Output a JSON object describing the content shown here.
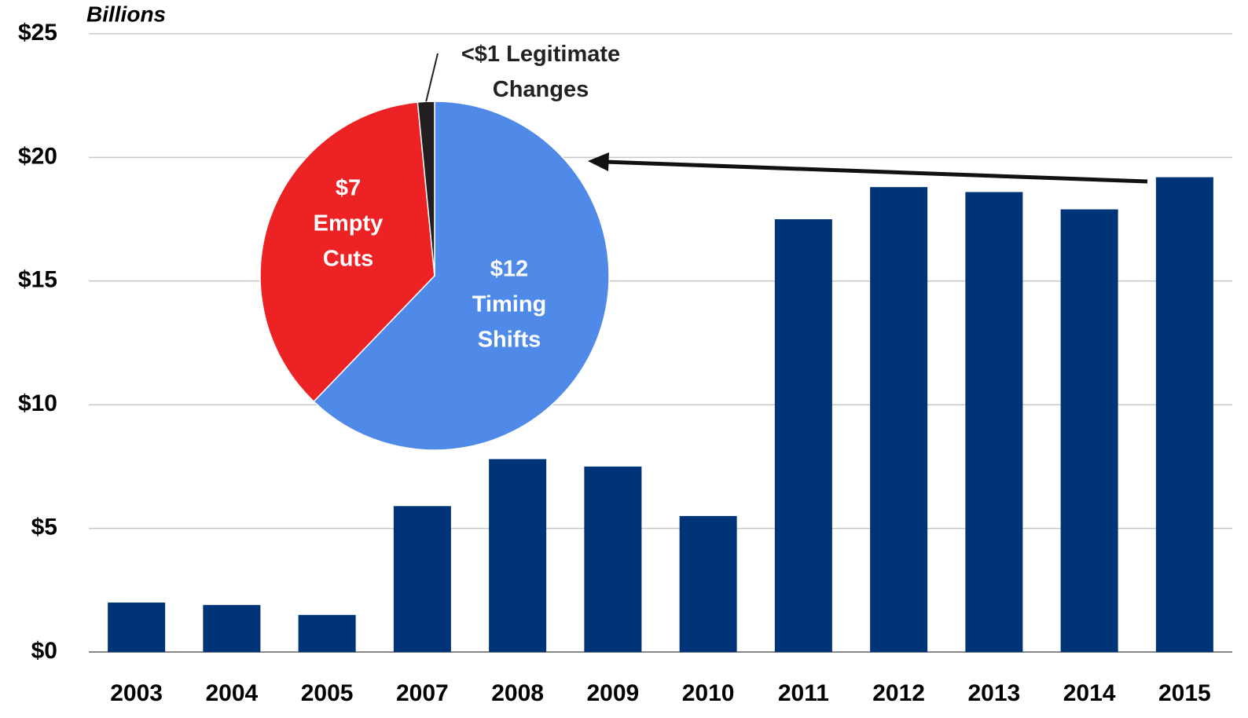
{
  "chart_data": [
    {
      "type": "bar",
      "ylabel": "Billions",
      "categories": [
        "2003",
        "2004",
        "2005",
        "2007",
        "2008",
        "2009",
        "2010",
        "2011",
        "2012",
        "2013",
        "2014",
        "2015"
      ],
      "values": [
        2.0,
        1.9,
        1.5,
        5.9,
        7.8,
        7.5,
        5.5,
        17.5,
        18.8,
        18.6,
        17.9,
        19.2
      ],
      "color": "#003478",
      "ylim": [
        0,
        25
      ],
      "yticks": [
        {
          "value": 0,
          "label": "$0"
        },
        {
          "value": 5,
          "label": "$5"
        },
        {
          "value": 10,
          "label": "$10"
        },
        {
          "value": 15,
          "label": "$15"
        },
        {
          "value": 20,
          "label": "$20"
        },
        {
          "value": 25,
          "label": "$25"
        }
      ],
      "grid": true
    },
    {
      "type": "pie",
      "categories": [
        "Timing Shifts",
        "Empty Cuts",
        "Legitimate Changes"
      ],
      "values": [
        12,
        7,
        0.3
      ],
      "value_labels": [
        "$12",
        "$7",
        "<$1"
      ],
      "colors": [
        "#4f8ae9",
        "#ed2224",
        "#231f20"
      ]
    }
  ]
}
